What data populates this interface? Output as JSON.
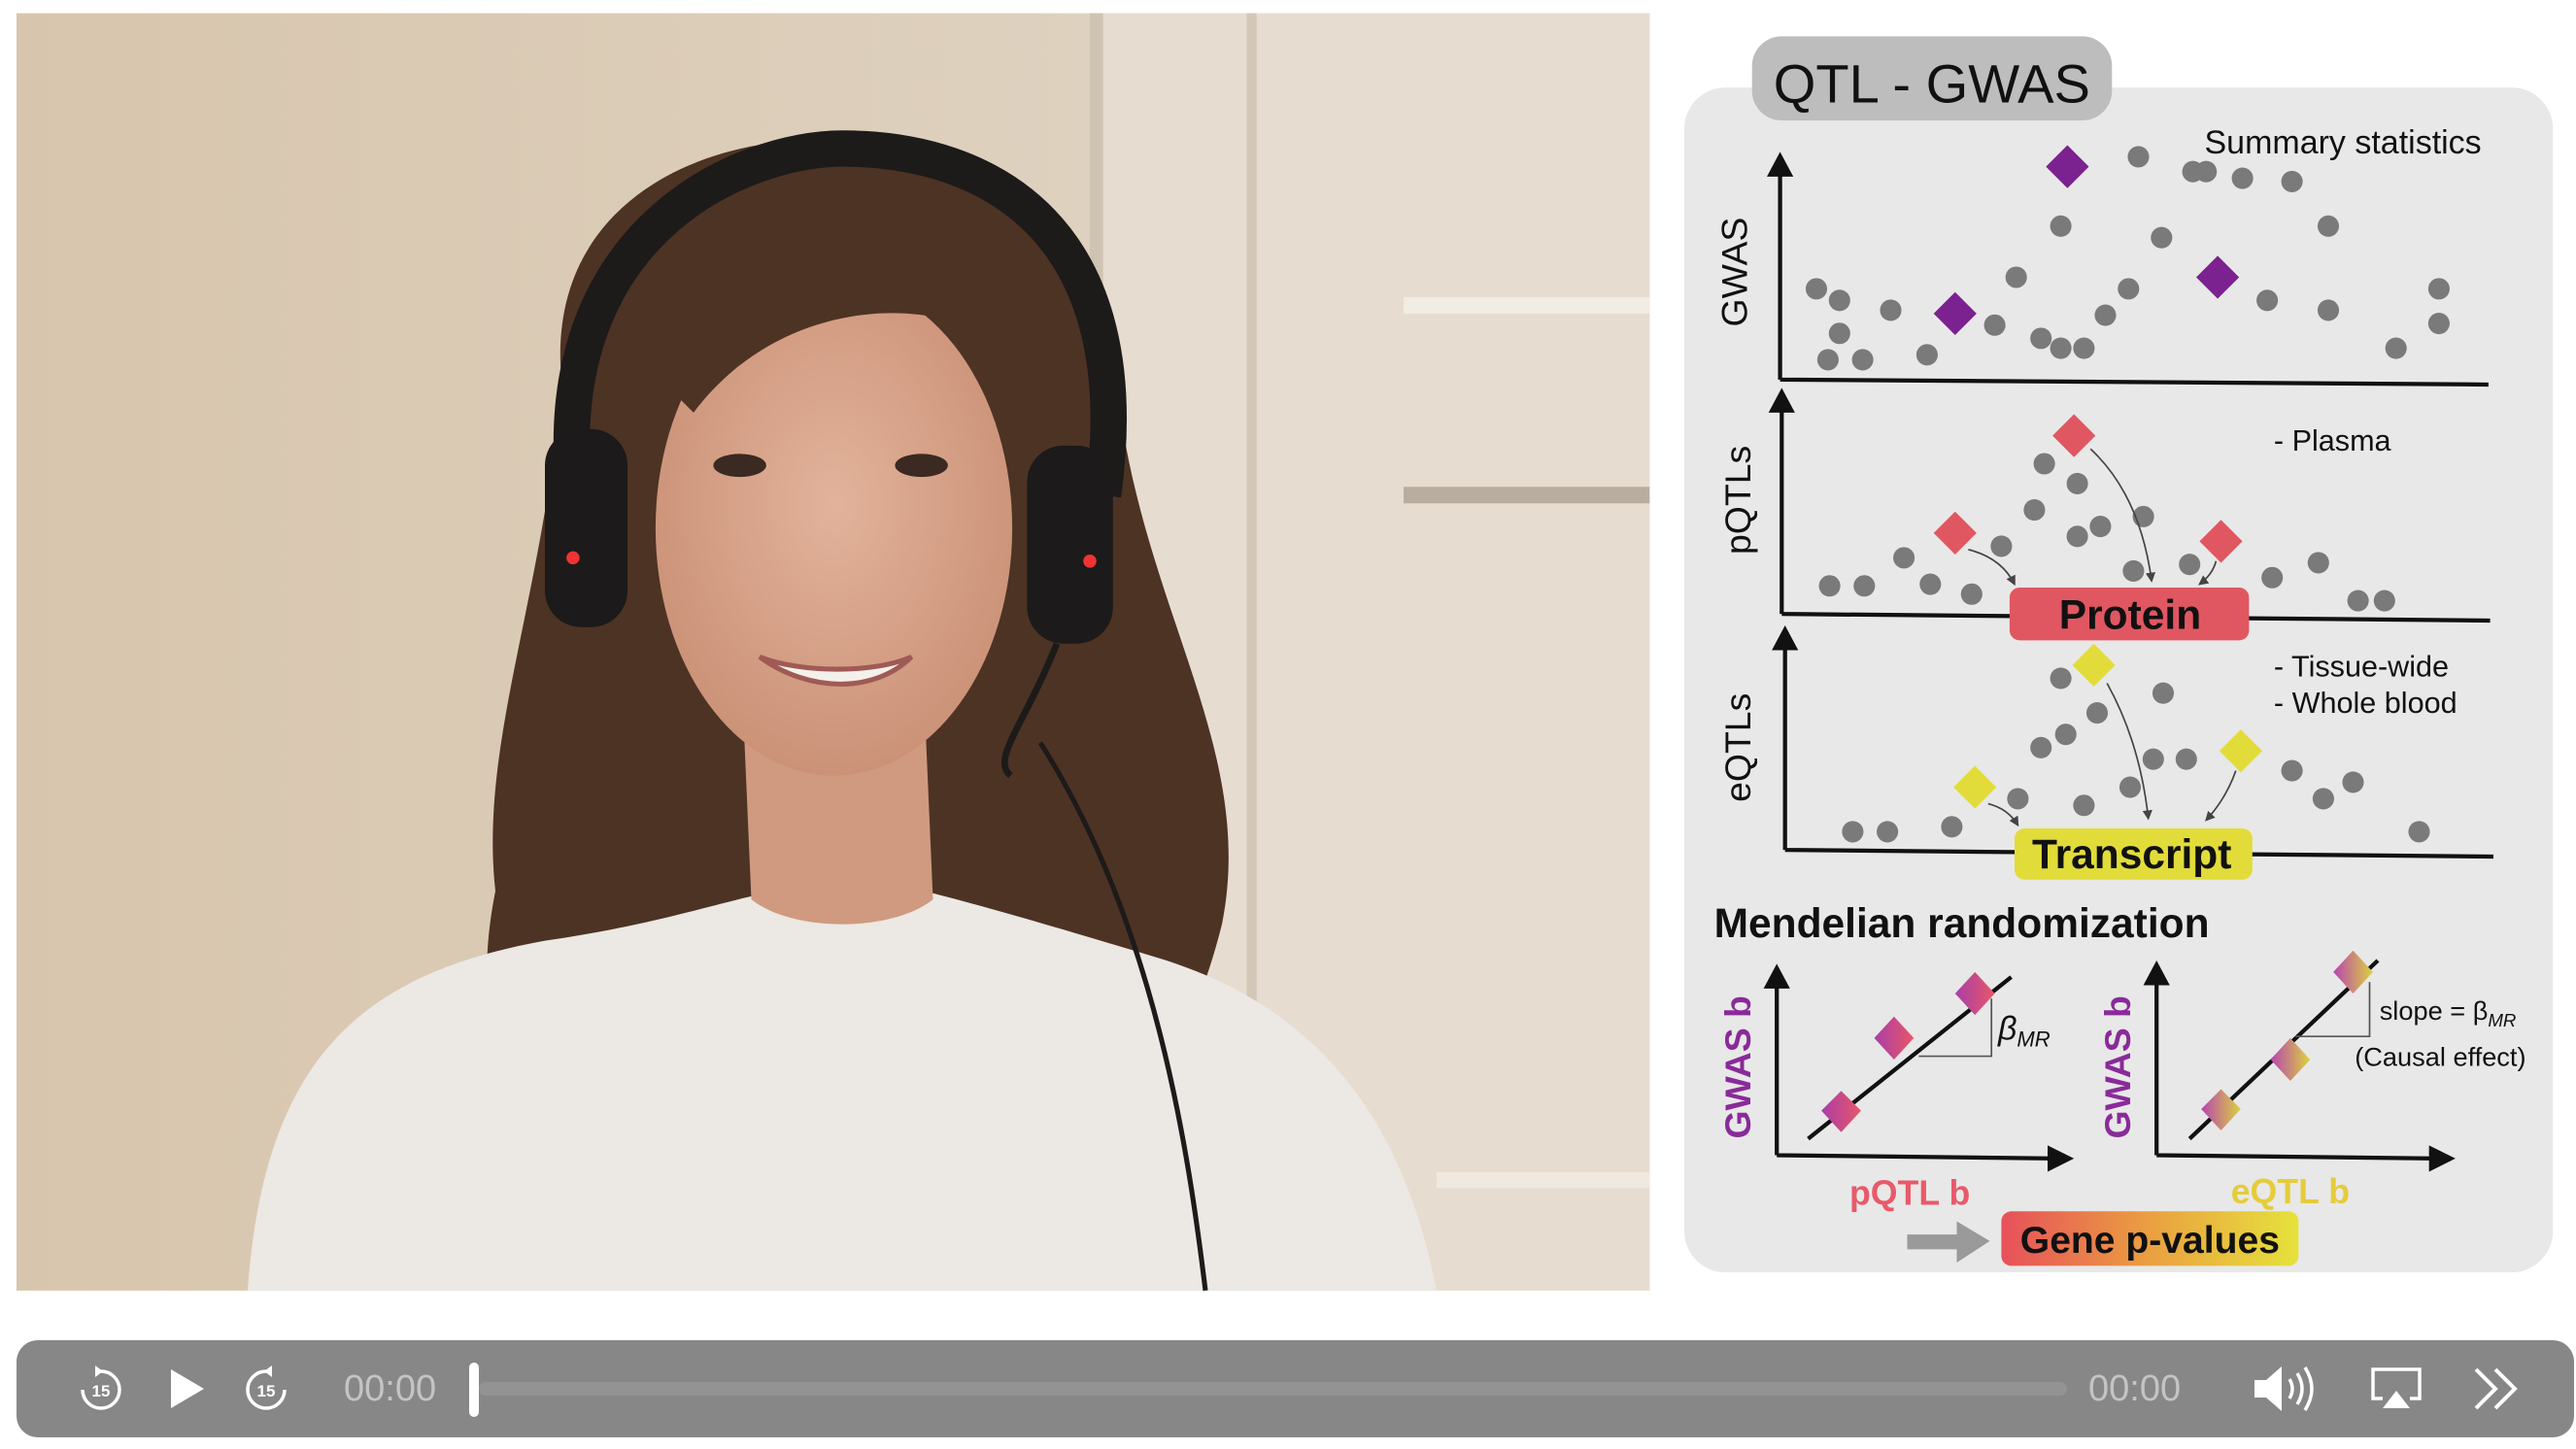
{
  "video": {
    "description_free": true
  },
  "slide": {
    "title": "QTL - GWAS",
    "summary_label": "Summary statistics",
    "gwas_axis": "GWAS",
    "pqtl_axis": "pQTLs",
    "eqtl_axis": "eQTLs",
    "plasma_note": "- Plasma",
    "tissue_note": "- Tissue-wide",
    "blood_note": "- Whole blood",
    "protein_label": "Protein",
    "transcript_label": "Transcript",
    "mr_title": "Mendelian randomization",
    "mr_left_y": "GWAS b",
    "mr_left_x": "pQTL b",
    "mr_left_beta": "β",
    "mr_beta_sub": "MR",
    "mr_right_y": "GWAS b",
    "mr_right_x": "eQTL b",
    "slope_label": "slope = β",
    "causal_label": "(Causal effect)",
    "gene_pvalues": "Gene p-values",
    "colors": {
      "gwas": "#7b2190",
      "pqtl": "#e05761",
      "eqtl": "#e2dc3a",
      "dot": "#7a7a7a",
      "panel": "#e8e8e8"
    }
  },
  "player": {
    "current_time": "00:00",
    "duration": "00:00",
    "progress": 0,
    "icons": [
      "rewind-15-icon",
      "play-icon",
      "forward-15-icon",
      "volume-icon",
      "airplay-icon",
      "chevrons-right-icon"
    ],
    "skip_seconds": "15"
  }
}
